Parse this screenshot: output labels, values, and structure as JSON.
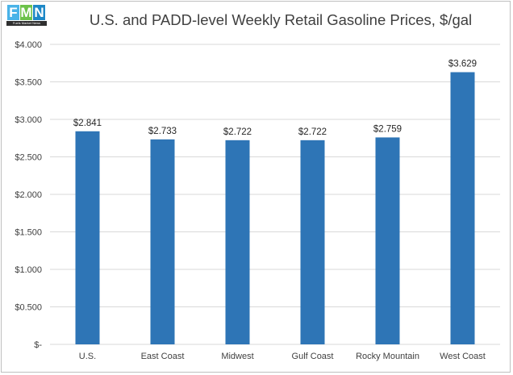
{
  "logo": {
    "letters": [
      "F",
      "M",
      "N"
    ],
    "caption": "Fuels Market News",
    "colors": [
      "#4ab3e8",
      "#6cc24a",
      "#1e88c7"
    ]
  },
  "chart_data": {
    "type": "bar",
    "title": "U.S. and PADD-level Weekly Retail Gasoline Prices, $/gal",
    "xlabel": "",
    "ylabel": "",
    "categories": [
      "U.S.",
      "East Coast",
      "Midwest",
      "Gulf Coast",
      "Rocky Mountain",
      "West Coast"
    ],
    "values": [
      2.841,
      2.733,
      2.722,
      2.722,
      2.759,
      3.629
    ],
    "data_labels": [
      "$2.841",
      "$2.733",
      "$2.722",
      "$2.722",
      "$2.759",
      "$3.629"
    ],
    "ylim": [
      0,
      4.0
    ],
    "yticks": [
      0,
      0.5,
      1.0,
      1.5,
      2.0,
      2.5,
      3.0,
      3.5,
      4.0
    ],
    "ytick_labels": [
      "$-",
      "$0.500",
      "$1.000",
      "$1.500",
      "$2.000",
      "$2.500",
      "$3.000",
      "$3.500",
      "$4.000"
    ],
    "grid": true,
    "legend": "none",
    "bar_color": "#2e75b6",
    "grid_color": "#d9d9d9"
  }
}
